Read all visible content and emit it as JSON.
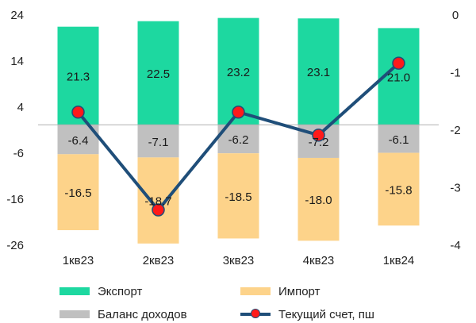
{
  "chart_data": {
    "type": "bar",
    "categories": [
      "1кв23",
      "2кв23",
      "3кв23",
      "4кв23",
      "1кв24"
    ],
    "series": [
      {
        "name": "Экспорт",
        "kind": "bar",
        "axis": "left",
        "color": "#1dd8a0",
        "values": [
          21.3,
          22.5,
          23.2,
          23.1,
          21.0
        ]
      },
      {
        "name": "Баланс доходов",
        "kind": "bar",
        "axis": "left",
        "color": "#c0c0c0",
        "values": [
          -6.4,
          -7.1,
          -6.2,
          -7.2,
          -6.1
        ]
      },
      {
        "name": "Импорт",
        "kind": "bar",
        "axis": "left",
        "color": "#fdd38a",
        "values": [
          -16.5,
          -18.7,
          -18.5,
          -18.0,
          -15.8
        ]
      },
      {
        "name": "Текущий счет, пш",
        "kind": "line",
        "axis": "right",
        "color": "#1f4e79",
        "marker_color": "#ff1a1a",
        "values": [
          -1.7,
          -3.4,
          -1.7,
          -2.1,
          -0.85
        ]
      }
    ],
    "left_axis": {
      "ylim": [
        -26,
        24
      ],
      "ticks": [
        24,
        14,
        4,
        -6,
        -16,
        -26
      ]
    },
    "right_axis": {
      "ylim": [
        -4,
        0
      ],
      "ticks": [
        0,
        -1,
        -2,
        -3,
        -4
      ]
    },
    "stacked": true,
    "grid": false,
    "legend_position": "bottom"
  },
  "legend": {
    "items": [
      {
        "label": "Экспорт",
        "type": "bar",
        "color": "#1dd8a0"
      },
      {
        "label": "Импорт",
        "type": "bar",
        "color": "#fdd38a"
      },
      {
        "label": "Баланс доходов",
        "type": "bar",
        "color": "#c0c0c0"
      },
      {
        "label": "Текущий счет, пш",
        "type": "line",
        "color": "#1f4e79",
        "marker_color": "#ff1a1a"
      }
    ]
  }
}
